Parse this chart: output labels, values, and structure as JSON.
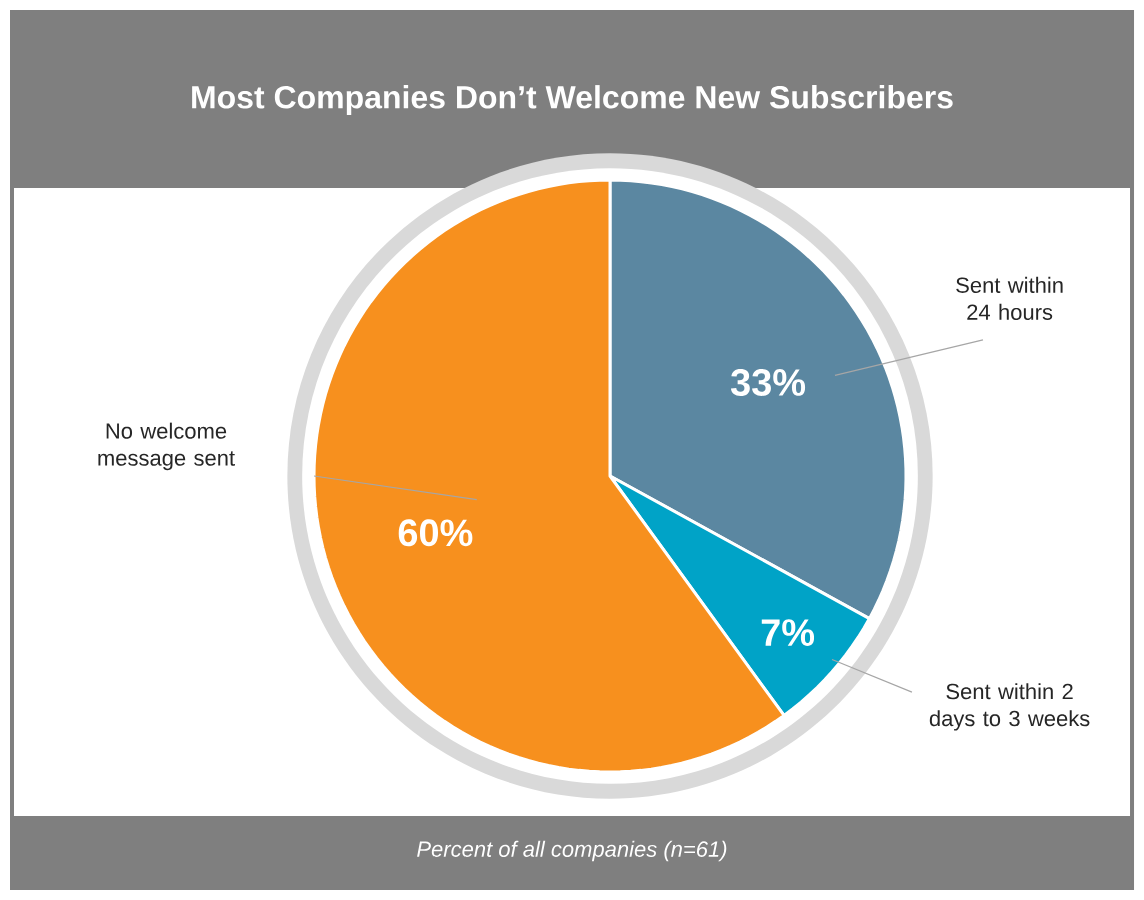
{
  "chart_data": {
    "type": "pie",
    "title": "Most Companies Don’t Welcome New Subscribers",
    "categories": [
      "Sent within 24 hours",
      "Sent within 2 days to 3 weeks",
      "No welcome message sent"
    ],
    "values": [
      33,
      7,
      60
    ],
    "colors": [
      "#5b87a1",
      "#00a3c7",
      "#f7901e"
    ],
    "value_labels": [
      "33%",
      "7%",
      "60%"
    ],
    "annotations": [
      "Percent of all companies (n=61)"
    ]
  }
}
